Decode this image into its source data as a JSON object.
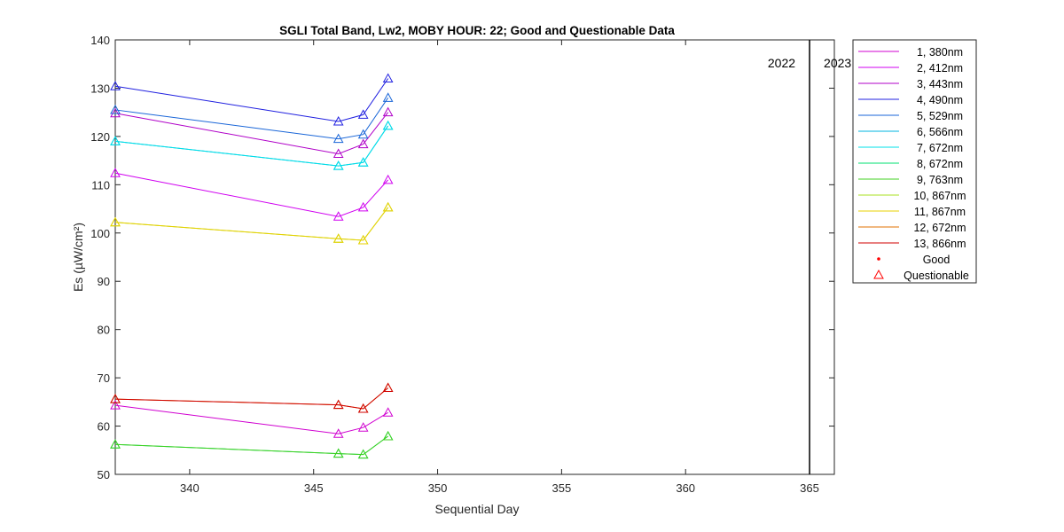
{
  "chart_data": {
    "type": "line",
    "title": "SGLI Total Band,  Lw2, MOBY HOUR: 22;  Good and Questionable Data",
    "xlabel": "Sequential Day",
    "ylabel": "Es (µW/cm²)",
    "xlim": [
      337,
      366
    ],
    "ylim": [
      50,
      140
    ],
    "xticks": [
      "340",
      "345",
      "350",
      "355",
      "360",
      "365"
    ],
    "yticks": [
      "50",
      "60",
      "70",
      "80",
      "90",
      "100",
      "110",
      "120",
      "130",
      "140"
    ],
    "grid": false,
    "legend_position": "outside-right",
    "x": [
      337,
      346,
      347,
      348
    ],
    "marker": "questionable-triangle",
    "series": [
      {
        "name": "1, 380nm",
        "color": "#d000d0",
        "values": [
          64.3,
          58.4,
          59.7,
          62.8
        ]
      },
      {
        "name": "2, 412nm",
        "color": "#d000f0",
        "values": [
          112.4,
          103.4,
          105.3,
          111.0
        ]
      },
      {
        "name": "3, 443nm",
        "color": "#b000c8",
        "values": [
          124.8,
          116.4,
          118.4,
          125.0
        ]
      },
      {
        "name": "4, 490nm",
        "color": "#2020e0",
        "values": [
          130.4,
          123.1,
          124.5,
          132.0
        ]
      },
      {
        "name": "5, 529nm",
        "color": "#1a66d8",
        "values": [
          125.5,
          119.5,
          120.4,
          128.0
        ]
      },
      {
        "name": "6, 566nm",
        "color": "#00b4e0",
        "values": [
          119.0,
          113.9,
          114.6,
          122.2
        ]
      },
      {
        "name": "7, 672nm",
        "color": "#00e0e8",
        "values": [
          119.0,
          113.9,
          114.6,
          122.2
        ]
      },
      {
        "name": "8, 672nm",
        "color": "#00e070",
        "values": [
          56.2,
          54.3,
          54.1,
          57.9
        ]
      },
      {
        "name": "9, 763nm",
        "color": "#40d020",
        "values": [
          56.2,
          54.3,
          54.1,
          57.9
        ]
      },
      {
        "name": "10, 867nm",
        "color": "#a8e020",
        "values": [
          102.2,
          98.8,
          98.5,
          105.3
        ]
      },
      {
        "name": "11, 867nm",
        "color": "#e8d000",
        "values": [
          102.2,
          98.8,
          98.5,
          105.3
        ]
      },
      {
        "name": "12, 672nm",
        "color": "#e07000",
        "values": [
          65.6,
          64.4,
          63.6,
          67.9
        ]
      },
      {
        "name": "13, 866nm",
        "color": "#d00000",
        "values": [
          65.6,
          64.4,
          63.6,
          67.9
        ]
      }
    ],
    "legend_extra": [
      {
        "name": "Good",
        "symbol": "dot",
        "color": "#ff0000"
      },
      {
        "name": "Questionable",
        "symbol": "triangle",
        "color": "#ff0000"
      }
    ],
    "year_divider": {
      "x": 365,
      "left_label": "2022",
      "right_label": "2023"
    }
  }
}
